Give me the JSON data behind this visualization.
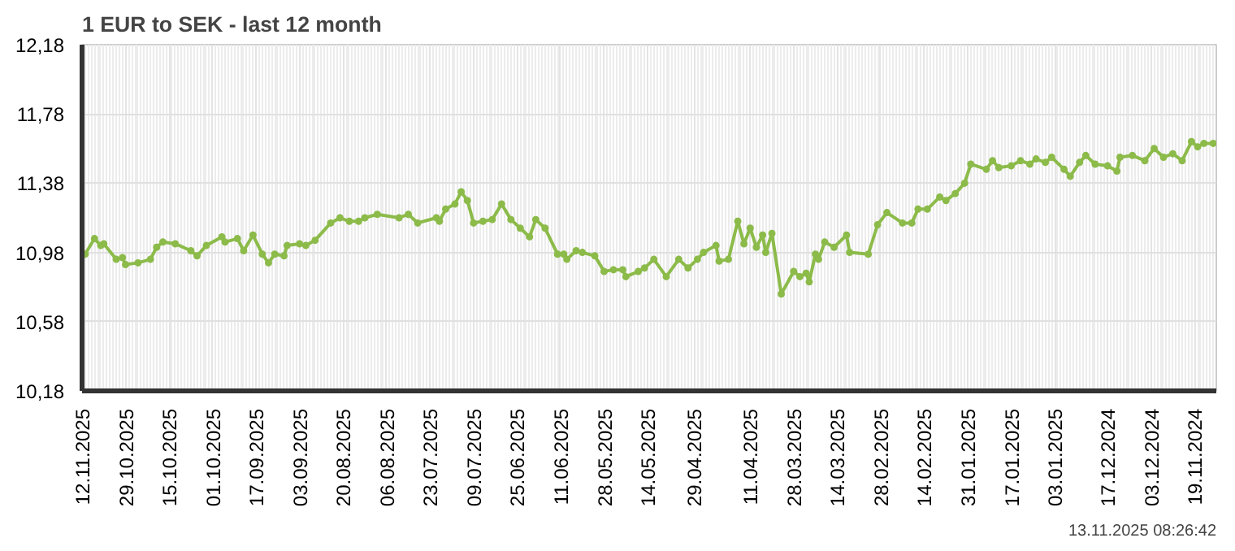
{
  "chart_data": {
    "type": "line",
    "title": "1 EUR to SEK - last 12 month",
    "x": [
      "2025-11-11",
      "2025-11-08",
      "2025-11-06",
      "2025-11-05",
      "2025-11-01",
      "2025-10-30",
      "2025-10-29",
      "2025-10-25",
      "2025-10-21",
      "2025-10-19",
      "2025-10-17",
      "2025-10-13",
      "2025-10-08",
      "2025-10-06",
      "2025-10-03",
      "2025-09-28",
      "2025-09-27",
      "2025-09-23",
      "2025-09-21",
      "2025-09-18",
      "2025-09-15",
      "2025-09-13",
      "2025-09-11",
      "2025-09-08",
      "2025-09-07",
      "2025-09-03",
      "2025-09-01",
      "2025-08-29",
      "2025-08-24",
      "2025-08-21",
      "2025-08-18",
      "2025-08-15",
      "2025-08-13",
      "2025-08-09",
      "2025-08-02",
      "2025-07-30",
      "2025-07-27",
      "2025-07-21",
      "2025-07-20",
      "2025-07-18",
      "2025-07-15",
      "2025-07-13",
      "2025-07-11",
      "2025-07-09",
      "2025-07-06",
      "2025-07-03",
      "2025-06-30",
      "2025-06-27",
      "2025-06-24",
      "2025-06-21",
      "2025-06-19",
      "2025-06-16",
      "2025-06-12",
      "2025-06-10",
      "2025-06-09",
      "2025-06-06",
      "2025-06-04",
      "2025-05-31",
      "2025-05-28",
      "2025-05-25",
      "2025-05-22",
      "2025-05-21",
      "2025-05-17",
      "2025-05-15",
      "2025-05-12",
      "2025-05-08",
      "2025-05-04",
      "2025-05-01",
      "2025-04-28",
      "2025-04-26",
      "2025-04-22",
      "2025-04-21",
      "2025-04-18",
      "2025-04-15",
      "2025-04-13",
      "2025-04-11",
      "2025-04-09",
      "2025-04-07",
      "2025-04-06",
      "2025-04-04",
      "2025-04-01",
      "2025-03-28",
      "2025-03-26",
      "2025-03-24",
      "2025-03-23",
      "2025-03-21",
      "2025-03-20",
      "2025-03-18",
      "2025-03-15",
      "2025-03-11",
      "2025-03-10",
      "2025-03-04",
      "2025-03-01",
      "2025-02-26",
      "2025-02-21",
      "2025-02-18",
      "2025-02-16",
      "2025-02-13",
      "2025-02-09",
      "2025-02-07",
      "2025-02-04",
      "2025-02-01",
      "2025-01-30",
      "2025-01-25",
      "2025-01-23",
      "2025-01-21",
      "2025-01-17",
      "2025-01-14",
      "2025-01-11",
      "2025-01-09",
      "2025-01-06",
      "2025-01-04",
      "2024-12-31",
      "2024-12-29",
      "2024-12-26",
      "2024-12-24",
      "2024-12-21",
      "2024-12-17",
      "2024-12-14",
      "2024-12-13",
      "2024-12-09",
      "2024-12-05",
      "2024-12-02",
      "2024-11-29",
      "2024-11-26",
      "2024-11-23",
      "2024-11-20",
      "2024-11-18",
      "2024-11-16",
      "2024-11-13"
    ],
    "series": [
      {
        "color": "#8cbb4a",
        "values": [
          10.97,
          11.06,
          11.02,
          11.03,
          10.94,
          10.95,
          10.91,
          10.92,
          10.94,
          11.01,
          11.04,
          11.03,
          10.99,
          10.96,
          11.02,
          11.07,
          11.04,
          11.06,
          10.99,
          11.08,
          10.97,
          10.92,
          10.97,
          10.96,
          11.02,
          11.03,
          11.02,
          11.05,
          11.15,
          11.18,
          11.16,
          11.16,
          11.18,
          11.2,
          11.18,
          11.2,
          11.15,
          11.18,
          11.16,
          11.23,
          11.26,
          11.33,
          11.28,
          11.15,
          11.16,
          11.17,
          11.26,
          11.17,
          11.12,
          11.07,
          11.17,
          11.12,
          10.97,
          10.97,
          10.94,
          10.99,
          10.98,
          10.96,
          10.87,
          10.88,
          10.88,
          10.84,
          10.87,
          10.89,
          10.94,
          10.84,
          10.94,
          10.89,
          10.94,
          10.98,
          11.02,
          10.93,
          10.94,
          11.16,
          11.03,
          11.12,
          11.01,
          11.08,
          10.98,
          11.09,
          10.74,
          10.87,
          10.84,
          10.86,
          10.81,
          10.97,
          10.94,
          11.04,
          11.01,
          11.08,
          10.98,
          10.97,
          11.14,
          11.21,
          11.15,
          11.15,
          11.23,
          11.23,
          11.3,
          11.28,
          11.32,
          11.38,
          11.49,
          11.46,
          11.51,
          11.47,
          11.48,
          11.51,
          11.49,
          11.52,
          11.5,
          11.53,
          11.46,
          11.42,
          11.5,
          11.54,
          11.49,
          11.48,
          11.45,
          11.53,
          11.54,
          11.51,
          11.58,
          11.53,
          11.55,
          11.51,
          11.62,
          11.59,
          11.61,
          11.61
        ]
      }
    ],
    "xlim": [
      "2025-11-12",
      "2024-11-12"
    ],
    "xticks": [
      {
        "value": "2025-11-12",
        "label": "12.11.2025"
      },
      {
        "value": "2025-10-29",
        "label": "29.10.2025"
      },
      {
        "value": "2025-10-15",
        "label": "15.10.2025"
      },
      {
        "value": "2025-10-01",
        "label": "01.10.2025"
      },
      {
        "value": "2025-09-17",
        "label": "17.09.2025"
      },
      {
        "value": "2025-09-03",
        "label": "03.09.2025"
      },
      {
        "value": "2025-08-20",
        "label": "20.08.2025"
      },
      {
        "value": "2025-08-06",
        "label": "06.08.2025"
      },
      {
        "value": "2025-07-23",
        "label": "23.07.2025"
      },
      {
        "value": "2025-07-09",
        "label": "09.07.2025"
      },
      {
        "value": "2025-06-25",
        "label": "25.06.2025"
      },
      {
        "value": "2025-06-11",
        "label": "11.06.2025"
      },
      {
        "value": "2025-05-28",
        "label": "28.05.2025"
      },
      {
        "value": "2025-05-14",
        "label": "14.05.2025"
      },
      {
        "value": "2025-04-29",
        "label": "29.04.2025"
      },
      {
        "value": "2025-04-11",
        "label": "11.04.2025"
      },
      {
        "value": "2025-03-28",
        "label": "28.03.2025"
      },
      {
        "value": "2025-03-14",
        "label": "14.03.2025"
      },
      {
        "value": "2025-02-28",
        "label": "28.02.2025"
      },
      {
        "value": "2025-02-14",
        "label": "14.02.2025"
      },
      {
        "value": "2025-01-31",
        "label": "31.01.2025"
      },
      {
        "value": "2025-01-17",
        "label": "17.01.2025"
      },
      {
        "value": "2025-01-03",
        "label": "03.01.2025"
      },
      {
        "value": "2024-12-17",
        "label": "17.12.2024"
      },
      {
        "value": "2024-12-03",
        "label": "03.12.2024"
      },
      {
        "value": "2024-11-19",
        "label": "19.11.2024"
      }
    ],
    "ylim": [
      10.18,
      12.18
    ],
    "yticks": [
      {
        "value": 10.18,
        "label": "10,18"
      },
      {
        "value": 10.58,
        "label": "10,58"
      },
      {
        "value": 10.98,
        "label": "10,98"
      },
      {
        "value": 11.38,
        "label": "11,38"
      },
      {
        "value": 11.78,
        "label": "11,78"
      },
      {
        "value": 12.18,
        "label": "12,18"
      }
    ],
    "grid": true,
    "marker": "circle",
    "line_style": "solid",
    "annotations": [
      "13.11.2025 08:26:42"
    ]
  }
}
